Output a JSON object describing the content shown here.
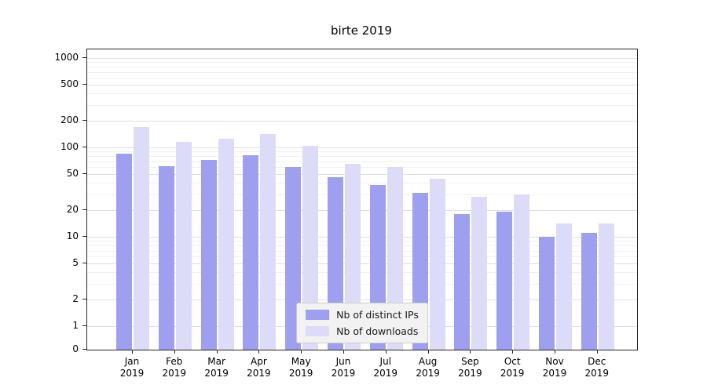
{
  "chart_data": {
    "type": "bar",
    "title": "birte 2019",
    "categories": [
      "Jan",
      "Feb",
      "Mar",
      "Apr",
      "May",
      "Jun",
      "Jul",
      "Aug",
      "Sep",
      "Oct",
      "Nov",
      "Dec"
    ],
    "year": "2019",
    "series": [
      {
        "name": "Nb of distinct IPs",
        "color": "#9f9fef",
        "values": [
          85,
          62,
          72,
          82,
          60,
          46,
          38,
          31,
          18,
          19,
          10,
          11
        ]
      },
      {
        "name": "Nb of downloads",
        "color": "#dcdcf8",
        "values": [
          170,
          115,
          125,
          140,
          105,
          65,
          60,
          45,
          28,
          30,
          14,
          14
        ]
      }
    ],
    "yscale": "symlog",
    "yticks": [
      0,
      1,
      2,
      5,
      10,
      20,
      50,
      100,
      200,
      500,
      1000
    ],
    "ylim": [
      0,
      1250
    ],
    "xlabel": "",
    "ylabel": "",
    "grid": true,
    "legend_position": "lower center"
  }
}
